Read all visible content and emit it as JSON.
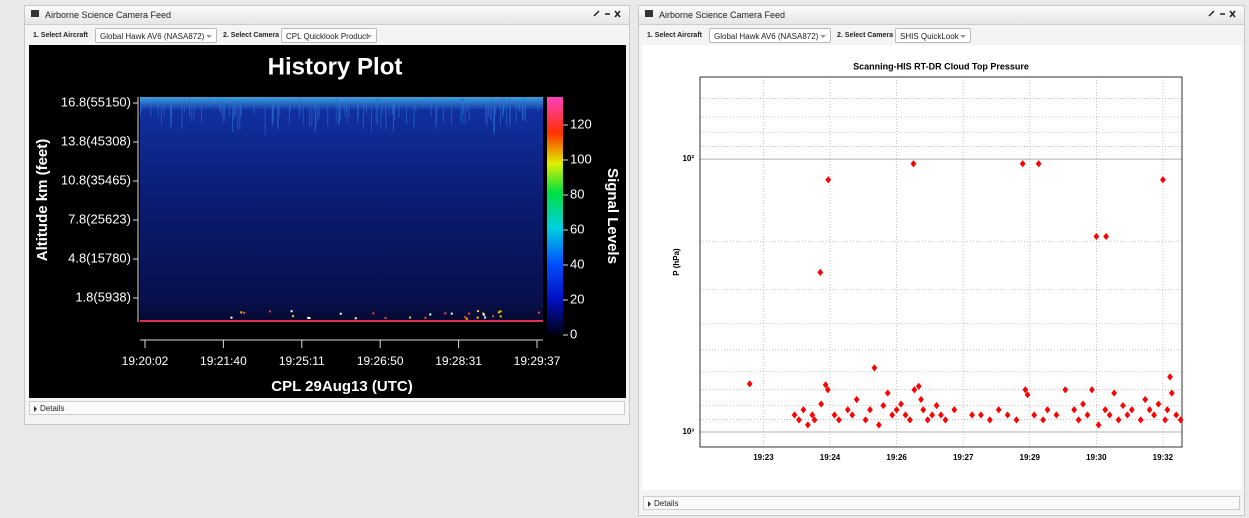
{
  "left_panel": {
    "header": "Airborne Science Camera Feed",
    "aircraft_label": "1. Select Aircraft",
    "aircraft": "Global Hawk AV6 (NASA872)",
    "camera_label": "2. Select Camera",
    "camera": "CPL Quicklook Product",
    "details": "Details",
    "plot": {
      "title": "History Plot",
      "y_label": "Altitude km (feet)",
      "y_ticks": [
        "16.8(55150)",
        "13.8(45308)",
        "10.8(35465)",
        "7.8(25623)",
        "4.8(15780)",
        "1.8(5938)"
      ],
      "x_label": "CPL 29Aug13 (UTC)",
      "x_ticks": [
        "19:20:02",
        "19:21:40",
        "19:25:11",
        "19:26:50",
        "19:28:31",
        "19:29:37"
      ],
      "colorbar_label": "Signal Levels",
      "colorbar_lim": [
        0,
        136
      ],
      "colorbar_ticks": [
        0,
        20,
        40,
        60,
        80,
        100,
        120
      ]
    }
  },
  "right_panel": {
    "header": "Airborne Science Camera Feed",
    "aircraft_label": "1. Select Aircraft",
    "aircraft": "Global Hawk AV6 (NASA872)",
    "camera_label": "2. Select Camera",
    "camera": "SHIS QuickLook",
    "details": "Details"
  },
  "chart_data": {
    "type": "scatter",
    "title": "Scanning-HIS RT-DR Cloud Top Pressure",
    "y_label": "P (hPa)",
    "log_y": true,
    "grid": true,
    "color": "#ff0000",
    "xlim": [
      21.57,
      32.43
    ],
    "xticks": [
      {
        "value": 23,
        "label": "19:23"
      },
      {
        "value": 24.5,
        "label": "19:24"
      },
      {
        "value": 26,
        "label": "19:26"
      },
      {
        "value": 27.5,
        "label": "19:27"
      },
      {
        "value": 29,
        "label": "19:29"
      },
      {
        "value": 30.5,
        "label": "19:30"
      },
      {
        "value": 32,
        "label": "19:32"
      }
    ],
    "ylim": [
      1135,
      50
    ],
    "yticks": [
      {
        "value": 100,
        "label": "10²"
      },
      {
        "value": 1000,
        "label": "10³"
      }
    ],
    "minor_yticks": [
      60,
      70,
      80,
      90,
      200,
      300,
      400,
      500,
      600,
      700,
      800,
      900
    ],
    "x": [
      22.69,
      24.28,
      24.46,
      26.38,
      28.84,
      29.2,
      30.5,
      30.72,
      32.0,
      25.5,
      32.16,
      23.7,
      23.8,
      23.9,
      24.0,
      24.1,
      24.15,
      24.3,
      24.4,
      24.45,
      24.6,
      24.7,
      24.9,
      25.0,
      25.1,
      25.3,
      25.4,
      25.6,
      25.7,
      25.8,
      25.9,
      26.0,
      26.1,
      26.2,
      26.3,
      26.4,
      26.5,
      26.55,
      26.6,
      26.7,
      26.8,
      26.9,
      27.0,
      27.1,
      27.3,
      27.7,
      27.9,
      28.1,
      28.3,
      28.5,
      28.7,
      28.9,
      28.95,
      29.1,
      29.3,
      29.4,
      29.6,
      29.8,
      30.0,
      30.1,
      30.2,
      30.3,
      30.4,
      30.55,
      30.7,
      30.8,
      30.9,
      31.0,
      31.1,
      31.2,
      31.3,
      31.5,
      31.6,
      31.7,
      31.8,
      31.9,
      32.05,
      32.1,
      32.2,
      32.3,
      32.4
    ],
    "values": [
      666,
      260,
      119,
      104,
      104,
      104,
      192,
      192,
      119,
      582,
      628,
      866,
      903,
      829,
      942,
      866,
      903,
      790,
      672,
      700,
      866,
      903,
      829,
      866,
      760,
      903,
      829,
      942,
      800,
      720,
      866,
      829,
      790,
      866,
      903,
      700,
      680,
      760,
      829,
      903,
      866,
      800,
      866,
      903,
      829,
      866,
      866,
      903,
      829,
      866,
      903,
      700,
      730,
      866,
      903,
      829,
      866,
      700,
      829,
      903,
      790,
      866,
      700,
      942,
      829,
      866,
      720,
      903,
      800,
      866,
      829,
      903,
      760,
      829,
      866,
      790,
      903,
      829,
      720,
      866,
      903
    ]
  }
}
